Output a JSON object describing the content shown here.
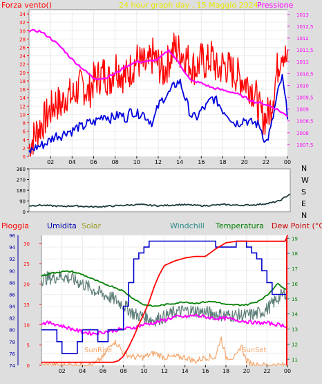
{
  "header": {
    "left_label": "Forza vento()",
    "title": "24 hour graph day , 15 Maggio 2024",
    "right_label": "Pressione"
  },
  "colors": {
    "frame": "#dedede",
    "panel_bg": "#ffffff",
    "axis": "#000000",
    "tick_red": "#ff0000",
    "tick_magenta": "#ff00ff",
    "tick_teal": "#008080",
    "wind_gust": "#ff0000",
    "wind_avg": "#0000dd",
    "pressure": "#ff00ff",
    "direction": "#1b3a3a",
    "humidity": "#0000cc",
    "solar": "#f4a56a",
    "windchill": "#5f7f7a",
    "temperature": "#008000",
    "dewpoint": "#cc0000",
    "rain": "#ff0000",
    "rain_current": "#ff00ff"
  },
  "compass": [
    "N",
    "W",
    "S",
    "E",
    "N"
  ],
  "bottom_legend": {
    "rain": "Pioggia",
    "humidity": "Umidita",
    "solar": "Solar",
    "windchill": "Windchill",
    "temperature": "Temperatura",
    "dewpoint": "Dew Point (°C)"
  },
  "annotations": {
    "sunrise": "SunRise",
    "sunset": "SunSet"
  },
  "chart_data": [
    {
      "type": "line",
      "title": "24 hour graph day , 15 Maggio 2024",
      "x_ticks": [
        "02",
        "04",
        "06",
        "08",
        "10",
        "12",
        "14",
        "16",
        "18",
        "20",
        "22",
        "00"
      ],
      "xlim": [
        0,
        24
      ],
      "y_left": {
        "label": "Forza vento()",
        "ticks": [
          "0",
          "2",
          "4",
          "6",
          "8",
          "10",
          "12",
          "14",
          "16",
          "18",
          "20",
          "22",
          "24",
          "26",
          "28",
          "30",
          "32",
          "34"
        ],
        "lim": [
          0,
          35
        ]
      },
      "y_right": {
        "label": "Pressione",
        "ticks": [
          "1007,5",
          "1008",
          "1008,5",
          "1009",
          "1009,5",
          "1010",
          "1010,5",
          "1011",
          "1011,5",
          "1012",
          "1012,5",
          "1013"
        ],
        "lim": [
          1007,
          1013.2
        ]
      },
      "series": [
        {
          "name": "",
          "axis": "left",
          "x": [
            0,
            0.5,
            1,
            1.5,
            2,
            2.5,
            3,
            3.5,
            4,
            4.5,
            5,
            5.5,
            6,
            6.5,
            7,
            7.5,
            8,
            8.5,
            9,
            9.5,
            10,
            10.5,
            11,
            11.5,
            12,
            12.5,
            13,
            13.5,
            14,
            14.5,
            15,
            15.5,
            16,
            16.5,
            17,
            17.5,
            18,
            18.5,
            19,
            19.5,
            20,
            20.5,
            21,
            21.5,
            22,
            22.5,
            23,
            23.5,
            24
          ],
          "values": [
            2,
            5,
            7,
            9,
            11,
            13,
            12,
            15,
            14,
            16,
            17,
            15,
            18,
            19,
            20,
            18,
            22,
            20,
            19,
            21,
            23,
            22,
            21,
            24,
            22,
            20,
            23,
            26,
            25,
            24,
            22,
            21,
            23,
            22,
            24,
            20,
            22,
            21,
            20,
            19,
            18,
            17,
            15,
            10,
            9,
            12,
            20,
            26,
            22
          ]
        },
        {
          "name": "",
          "axis": "left",
          "x": [
            0,
            0.5,
            1,
            1.5,
            2,
            2.5,
            3,
            3.5,
            4,
            4.5,
            5,
            5.5,
            6,
            6.5,
            7,
            7.5,
            8,
            8.5,
            9,
            9.5,
            10,
            10.5,
            11,
            11.5,
            12,
            12.5,
            13,
            13.5,
            14,
            14.5,
            15,
            15.5,
            16,
            16.5,
            17,
            17.5,
            18,
            18.5,
            19,
            19.5,
            20,
            20.5,
            21,
            21.5,
            22,
            22.5,
            23,
            23.5,
            24
          ],
          "values": [
            1,
            2,
            2.5,
            3,
            4,
            5,
            5,
            6,
            6,
            7,
            7,
            8,
            8,
            9,
            10,
            9,
            9.5,
            10,
            9,
            11,
            10,
            10.5,
            9,
            8,
            12,
            14,
            15,
            17,
            18,
            14,
            10,
            9,
            11,
            12,
            14,
            13,
            11,
            10,
            8,
            8,
            9,
            8,
            8,
            7,
            3,
            7,
            14,
            19,
            10
          ]
        },
        {
          "name": "",
          "axis": "right",
          "x": [
            0,
            1,
            2,
            3,
            4,
            5,
            6,
            7,
            8,
            9,
            10,
            11,
            12,
            13,
            14,
            15,
            16,
            17,
            18,
            19,
            20,
            21,
            22,
            23,
            24
          ],
          "values": [
            1012.3,
            1012.3,
            1012.0,
            1011.6,
            1011.1,
            1010.7,
            1010.3,
            1010.3,
            1010.5,
            1010.8,
            1011.0,
            1011.0,
            1011.1,
            1011.5,
            1010.9,
            1010.2,
            1010.1,
            1009.9,
            1009.8,
            1009.7,
            1009.5,
            1009.3,
            1009.2,
            1009.0,
            1008.7
          ]
        }
      ]
    },
    {
      "type": "line",
      "y_left": {
        "label": "",
        "ticks": [
          "0",
          "90",
          "180",
          "270",
          "360"
        ],
        "lim": [
          0,
          360
        ]
      },
      "compass_labels": [
        "N",
        "W",
        "S",
        "E",
        "N"
      ],
      "x_ticks": [],
      "xlim": [
        0,
        24
      ],
      "series": [
        {
          "name": "",
          "x": [
            0,
            1,
            2,
            3,
            4,
            5,
            6,
            7,
            8,
            9,
            10,
            11,
            12,
            13,
            14,
            15,
            16,
            17,
            18,
            19,
            20,
            21,
            22,
            23,
            24
          ],
          "values": [
            50,
            55,
            50,
            45,
            50,
            45,
            40,
            45,
            50,
            55,
            60,
            55,
            50,
            55,
            60,
            55,
            50,
            55,
            60,
            55,
            55,
            60,
            70,
            90,
            150
          ]
        }
      ]
    },
    {
      "type": "line",
      "x_ticks": [
        "02",
        "04",
        "06",
        "08",
        "10",
        "12",
        "14",
        "16",
        "18",
        "20",
        "22",
        "00"
      ],
      "xlim": [
        0,
        24
      ],
      "y_left_humidity": {
        "label": "Umidita",
        "ticks": [
          "74",
          "76",
          "78",
          "80",
          "82",
          "84",
          "86",
          "88",
          "90",
          "92",
          "94",
          "96"
        ],
        "lim": [
          74,
          96
        ]
      },
      "y_left_inner": {
        "label": "Pioggia",
        "ticks": [
          "0",
          "5",
          "10",
          "15",
          "20",
          "25",
          "30"
        ],
        "lim": [
          0,
          32
        ]
      },
      "y_right": {
        "label": "Dew Point (°C)",
        "ticks": [
          "11",
          "12",
          "13",
          "14",
          "15",
          "16",
          "17",
          "18",
          "19"
        ],
        "lim": [
          10.6,
          19.2
        ]
      },
      "series": [
        {
          "name": "Umidita",
          "axis": "humidity",
          "x": [
            0,
            1,
            1.5,
            2,
            2.5,
            3,
            3.5,
            4,
            4.5,
            5,
            5.5,
            6,
            6.5,
            7,
            7.5,
            8,
            8.5,
            9,
            9.5,
            10,
            10.5,
            11,
            11.5,
            12,
            13,
            14,
            15,
            16,
            17,
            18,
            19,
            20,
            20.5,
            21,
            21.5,
            22,
            22.5,
            23,
            23.5,
            24
          ],
          "values": [
            80,
            80,
            78,
            76,
            76,
            76,
            78,
            80,
            80,
            80,
            78,
            78,
            80,
            80,
            80,
            84,
            88,
            92,
            93,
            94,
            95,
            95,
            95,
            95,
            95,
            95,
            95,
            95,
            94,
            94,
            95,
            94,
            93,
            92,
            90,
            88,
            86,
            86,
            86,
            86
          ]
        },
        {
          "name": "Solar",
          "axis": "inner",
          "x": [
            0,
            5,
            5.5,
            6,
            6.5,
            7,
            7.5,
            8,
            9,
            10,
            11,
            12,
            13,
            14,
            15,
            16,
            17,
            17.5,
            18,
            19,
            19.5,
            20,
            21,
            22,
            24
          ],
          "values": [
            0,
            0,
            1,
            2,
            4,
            6,
            5,
            3,
            2,
            2,
            3,
            2,
            2,
            2,
            1,
            2,
            2,
            7,
            2,
            2,
            5,
            1,
            0,
            0,
            0
          ]
        },
        {
          "name": "Windchill",
          "axis": "dewpoint",
          "x": [
            0,
            1,
            2,
            3,
            4,
            5,
            6,
            7,
            8,
            9,
            10,
            11,
            12,
            13,
            14,
            15,
            16,
            17,
            18,
            19,
            20,
            21,
            22,
            23,
            24
          ],
          "values": [
            16.3,
            16.4,
            16.5,
            16.3,
            16.0,
            15.6,
            15.3,
            15.0,
            14.6,
            14.0,
            13.8,
            13.6,
            13.8,
            14.1,
            14.2,
            14.2,
            14.1,
            14.0,
            13.9,
            13.9,
            13.9,
            14.0,
            14.3,
            15.0,
            15.5
          ]
        },
        {
          "name": "Temperatura",
          "axis": "dewpoint",
          "x": [
            0,
            1,
            2,
            3,
            4,
            5,
            6,
            7,
            8,
            9,
            10,
            11,
            12,
            13,
            14,
            15,
            16,
            17,
            18,
            19,
            20,
            21,
            22,
            23,
            24
          ],
          "values": [
            16.5,
            16.7,
            16.8,
            16.8,
            16.6,
            16.3,
            16.0,
            15.8,
            15.5,
            15.0,
            14.6,
            14.5,
            14.6,
            14.7,
            14.8,
            14.7,
            14.8,
            14.8,
            14.6,
            14.6,
            14.6,
            14.8,
            15.2,
            16.0,
            15.6
          ]
        },
        {
          "name": "Dew Point (°C)",
          "axis": "dewpoint",
          "x": [
            0,
            1,
            2,
            3,
            4,
            5,
            6,
            7,
            8,
            9,
            10,
            11,
            12,
            13,
            14,
            15,
            16,
            17,
            18,
            19,
            20,
            21,
            22,
            23,
            24
          ],
          "values": [
            13.4,
            13.4,
            13.2,
            13.0,
            12.8,
            12.7,
            12.8,
            12.9,
            13.0,
            13.1,
            13.3,
            13.4,
            13.6,
            13.8,
            13.8,
            13.9,
            13.8,
            13.7,
            13.7,
            13.6,
            13.5,
            13.4,
            13.4,
            13.3,
            13.2
          ]
        },
        {
          "name": "Pioggia",
          "axis": "dewpoint",
          "x": [
            0,
            7,
            7.5,
            8,
            8.5,
            9,
            9.5,
            10,
            10.5,
            11,
            11.5,
            12,
            13,
            14,
            15,
            16,
            17,
            18,
            19,
            20,
            23.8,
            24
          ],
          "values": [
            10.8,
            10.8,
            10.9,
            11.2,
            11.8,
            12.5,
            13.3,
            14.0,
            14.8,
            15.8,
            16.6,
            17.2,
            17.5,
            17.7,
            17.8,
            17.8,
            18.3,
            18.7,
            18.8,
            18.8,
            18.8,
            19.2
          ]
        }
      ]
    }
  ]
}
